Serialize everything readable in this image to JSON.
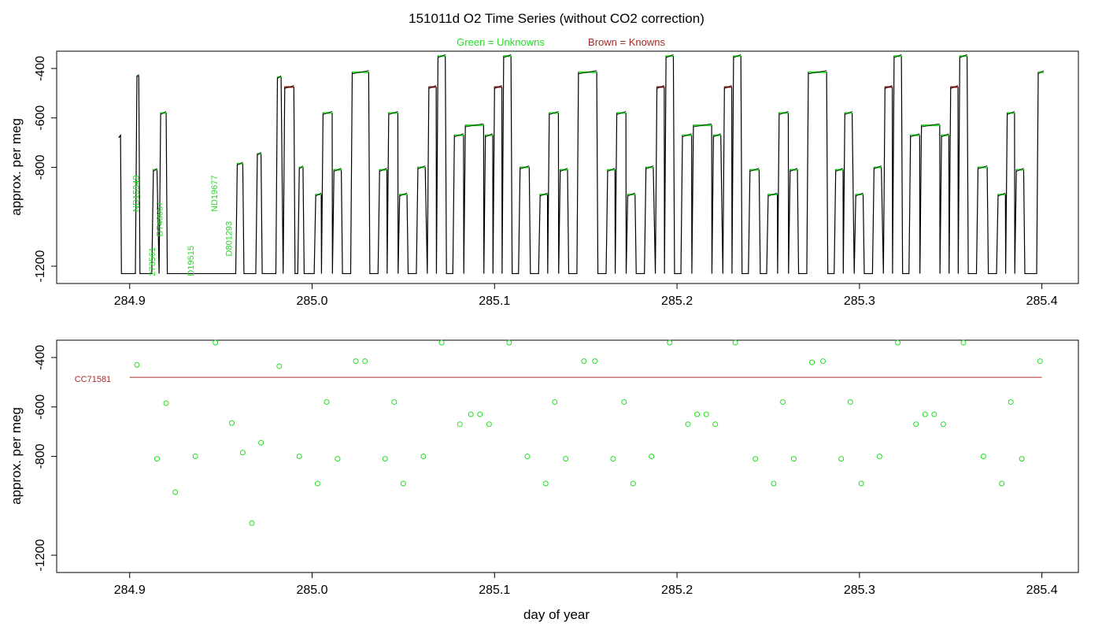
{
  "title": "151011d   O2 Time Series (without CO2 correction)",
  "legend": [
    {
      "label": "Green = Unknowns",
      "color": "#22dd22"
    },
    {
      "label": "Brown = Knowns",
      "color": "#a52a2a"
    }
  ],
  "colors": {
    "unknown": "#22dd22",
    "known": "#a52a2a",
    "trace": "#000000"
  },
  "chart_data": [
    {
      "type": "line",
      "name": "top-panel",
      "ylabel": "approx. per meg",
      "xlabel": "",
      "xlim": [
        284.86,
        285.42
      ],
      "ylim": [
        -1270,
        -330
      ],
      "xticks": [
        284.9,
        285.0,
        285.1,
        285.2,
        285.3,
        285.4
      ],
      "yticks": [
        -400,
        -600,
        -800,
        -1200
      ],
      "plateaus": [
        {
          "x0": 284.904,
          "x1": 284.905,
          "y": -430,
          "kind": "unknown"
        },
        {
          "x0": 284.913,
          "x1": 284.915,
          "y": -810,
          "kind": "unknown"
        },
        {
          "x0": 284.917,
          "x1": 284.92,
          "y": -580,
          "kind": "unknown"
        },
        {
          "x0": 284.959,
          "x1": 284.962,
          "y": -785,
          "kind": "unknown"
        },
        {
          "x0": 284.97,
          "x1": 284.972,
          "y": -745,
          "kind": "unknown"
        },
        {
          "x0": 284.981,
          "x1": 284.983,
          "y": -435,
          "kind": "unknown"
        },
        {
          "x0": 284.985,
          "x1": 284.99,
          "y": -475,
          "kind": "known"
        },
        {
          "x0": 284.993,
          "x1": 284.995,
          "y": -800,
          "kind": "unknown"
        },
        {
          "x0": 285.002,
          "x1": 285.005,
          "y": -910,
          "kind": "unknown"
        },
        {
          "x0": 285.006,
          "x1": 285.011,
          "y": -580,
          "kind": "unknown"
        },
        {
          "x0": 285.012,
          "x1": 285.016,
          "y": -810,
          "kind": "unknown"
        },
        {
          "x0": 285.022,
          "x1": 285.031,
          "y": -415,
          "kind": "unknown"
        },
        {
          "x0": 285.037,
          "x1": 285.041,
          "y": -810,
          "kind": "unknown"
        },
        {
          "x0": 285.042,
          "x1": 285.047,
          "y": -580,
          "kind": "unknown"
        },
        {
          "x0": 285.048,
          "x1": 285.052,
          "y": -910,
          "kind": "unknown"
        },
        {
          "x0": 285.058,
          "x1": 285.062,
          "y": -800,
          "kind": "unknown"
        },
        {
          "x0": 285.064,
          "x1": 285.068,
          "y": -475,
          "kind": "known"
        },
        {
          "x0": 285.069,
          "x1": 285.073,
          "y": -350,
          "kind": "unknown"
        },
        {
          "x0": 285.078,
          "x1": 285.083,
          "y": -670,
          "kind": "unknown"
        },
        {
          "x0": 285.084,
          "x1": 285.094,
          "y": -630,
          "kind": "unknown"
        },
        {
          "x0": 285.095,
          "x1": 285.099,
          "y": -670,
          "kind": "unknown"
        },
        {
          "x0": 285.1,
          "x1": 285.104,
          "y": -475,
          "kind": "known"
        },
        {
          "x0": 285.105,
          "x1": 285.109,
          "y": -350,
          "kind": "unknown"
        },
        {
          "x0": 285.114,
          "x1": 285.119,
          "y": -800,
          "kind": "unknown"
        },
        {
          "x0": 285.125,
          "x1": 285.129,
          "y": -910,
          "kind": "unknown"
        },
        {
          "x0": 285.13,
          "x1": 285.135,
          "y": -580,
          "kind": "unknown"
        },
        {
          "x0": 285.136,
          "x1": 285.14,
          "y": -810,
          "kind": "unknown"
        },
        {
          "x0": 285.146,
          "x1": 285.156,
          "y": -415,
          "kind": "unknown"
        },
        {
          "x0": 285.162,
          "x1": 285.166,
          "y": -810,
          "kind": "unknown"
        },
        {
          "x0": 285.167,
          "x1": 285.172,
          "y": -580,
          "kind": "unknown"
        },
        {
          "x0": 285.173,
          "x1": 285.177,
          "y": -910,
          "kind": "unknown"
        },
        {
          "x0": 285.183,
          "x1": 285.187,
          "y": -800,
          "kind": "unknown"
        },
        {
          "x0": 285.189,
          "x1": 285.193,
          "y": -475,
          "kind": "known"
        },
        {
          "x0": 285.194,
          "x1": 285.198,
          "y": -350,
          "kind": "unknown"
        },
        {
          "x0": 285.203,
          "x1": 285.208,
          "y": -670,
          "kind": "unknown"
        },
        {
          "x0": 285.209,
          "x1": 285.219,
          "y": -630,
          "kind": "unknown"
        },
        {
          "x0": 285.22,
          "x1": 285.224,
          "y": -670,
          "kind": "unknown"
        },
        {
          "x0": 285.226,
          "x1": 285.23,
          "y": -475,
          "kind": "known"
        },
        {
          "x0": 285.231,
          "x1": 285.235,
          "y": -350,
          "kind": "unknown"
        },
        {
          "x0": 285.24,
          "x1": 285.245,
          "y": -810,
          "kind": "unknown"
        },
        {
          "x0": 285.25,
          "x1": 285.255,
          "y": -910,
          "kind": "unknown"
        },
        {
          "x0": 285.256,
          "x1": 285.261,
          "y": -580,
          "kind": "unknown"
        },
        {
          "x0": 285.262,
          "x1": 285.266,
          "y": -810,
          "kind": "unknown"
        },
        {
          "x0": 285.272,
          "x1": 285.282,
          "y": -415,
          "kind": "unknown"
        },
        {
          "x0": 285.287,
          "x1": 285.291,
          "y": -810,
          "kind": "unknown"
        },
        {
          "x0": 285.292,
          "x1": 285.296,
          "y": -580,
          "kind": "unknown"
        },
        {
          "x0": 285.298,
          "x1": 285.302,
          "y": -910,
          "kind": "unknown"
        },
        {
          "x0": 285.308,
          "x1": 285.312,
          "y": -800,
          "kind": "unknown"
        },
        {
          "x0": 285.314,
          "x1": 285.318,
          "y": -475,
          "kind": "known"
        },
        {
          "x0": 285.319,
          "x1": 285.323,
          "y": -350,
          "kind": "unknown"
        },
        {
          "x0": 285.328,
          "x1": 285.333,
          "y": -670,
          "kind": "unknown"
        },
        {
          "x0": 285.334,
          "x1": 285.344,
          "y": -630,
          "kind": "unknown"
        },
        {
          "x0": 285.345,
          "x1": 285.349,
          "y": -670,
          "kind": "unknown"
        },
        {
          "x0": 285.35,
          "x1": 285.354,
          "y": -475,
          "kind": "known"
        },
        {
          "x0": 285.355,
          "x1": 285.359,
          "y": -350,
          "kind": "unknown"
        },
        {
          "x0": 285.365,
          "x1": 285.37,
          "y": -800,
          "kind": "unknown"
        },
        {
          "x0": 285.376,
          "x1": 285.38,
          "y": -910,
          "kind": "unknown"
        },
        {
          "x0": 285.381,
          "x1": 285.385,
          "y": -580,
          "kind": "unknown"
        },
        {
          "x0": 285.386,
          "x1": 285.39,
          "y": -810,
          "kind": "unknown"
        },
        {
          "x0": 285.398,
          "x1": 285.401,
          "y": -415,
          "kind": "unknown"
        }
      ],
      "sample_labels": [
        {
          "text": "ND15949",
          "x": 284.905,
          "y": -980
        },
        {
          "text": "D743657",
          "x": 284.918,
          "y": -1080
        },
        {
          "text": "273561",
          "x": 284.914,
          "y": -1240
        },
        {
          "text": "D19515",
          "x": 284.935,
          "y": -1240
        },
        {
          "text": "ND19677",
          "x": 284.948,
          "y": -980
        },
        {
          "text": "D801293",
          "x": 284.956,
          "y": -1160
        }
      ]
    },
    {
      "type": "scatter",
      "name": "bottom-panel",
      "ylabel": "approx. per meg",
      "xlabel": "day of year",
      "xlim": [
        284.86,
        285.42
      ],
      "ylim": [
        -1270,
        -330
      ],
      "xticks": [
        284.9,
        285.0,
        285.1,
        285.2,
        285.3,
        285.4
      ],
      "yticks": [
        -400,
        -600,
        -800,
        -1200
      ],
      "known_line": {
        "label": "CC71581",
        "x0": 284.9,
        "x1": 285.4,
        "y": -480
      },
      "points": [
        [
          284.904,
          -430
        ],
        [
          284.915,
          -810
        ],
        [
          284.92,
          -585
        ],
        [
          284.925,
          -945
        ],
        [
          284.936,
          -800
        ],
        [
          284.947,
          -340
        ],
        [
          284.956,
          -665
        ],
        [
          284.962,
          -785
        ],
        [
          284.967,
          -1070
        ],
        [
          284.972,
          -745
        ],
        [
          284.982,
          -435
        ],
        [
          284.993,
          -800
        ],
        [
          285.003,
          -910
        ],
        [
          285.008,
          -580
        ],
        [
          285.014,
          -810
        ],
        [
          285.024,
          -415
        ],
        [
          285.029,
          -415
        ],
        [
          285.04,
          -810
        ],
        [
          285.045,
          -580
        ],
        [
          285.05,
          -910
        ],
        [
          285.061,
          -800
        ],
        [
          285.071,
          -340
        ],
        [
          285.081,
          -670
        ],
        [
          285.087,
          -630
        ],
        [
          285.092,
          -630
        ],
        [
          285.097,
          -670
        ],
        [
          285.108,
          -340
        ],
        [
          285.118,
          -800
        ],
        [
          285.128,
          -910
        ],
        [
          285.133,
          -580
        ],
        [
          285.139,
          -810
        ],
        [
          285.149,
          -415
        ],
        [
          285.155,
          -415
        ],
        [
          285.165,
          -810
        ],
        [
          285.171,
          -580
        ],
        [
          285.176,
          -910
        ],
        [
          285.186,
          -800
        ],
        [
          285.196,
          -340
        ],
        [
          285.206,
          -670
        ],
        [
          285.211,
          -630
        ],
        [
          285.216,
          -630
        ],
        [
          285.221,
          -670
        ],
        [
          285.232,
          -340
        ],
        [
          285.243,
          -810
        ],
        [
          285.253,
          -910
        ],
        [
          285.258,
          -580
        ],
        [
          285.264,
          -810
        ],
        [
          285.274,
          -420
        ],
        [
          285.28,
          -415
        ],
        [
          285.29,
          -810
        ],
        [
          285.295,
          -580
        ],
        [
          285.301,
          -910
        ],
        [
          285.311,
          -800
        ],
        [
          285.321,
          -340
        ],
        [
          285.331,
          -670
        ],
        [
          285.336,
          -630
        ],
        [
          285.341,
          -630
        ],
        [
          285.346,
          -670
        ],
        [
          285.357,
          -340
        ],
        [
          285.368,
          -800
        ],
        [
          285.378,
          -910
        ],
        [
          285.383,
          -580
        ],
        [
          285.389,
          -810
        ],
        [
          285.399,
          -415
        ]
      ]
    }
  ]
}
